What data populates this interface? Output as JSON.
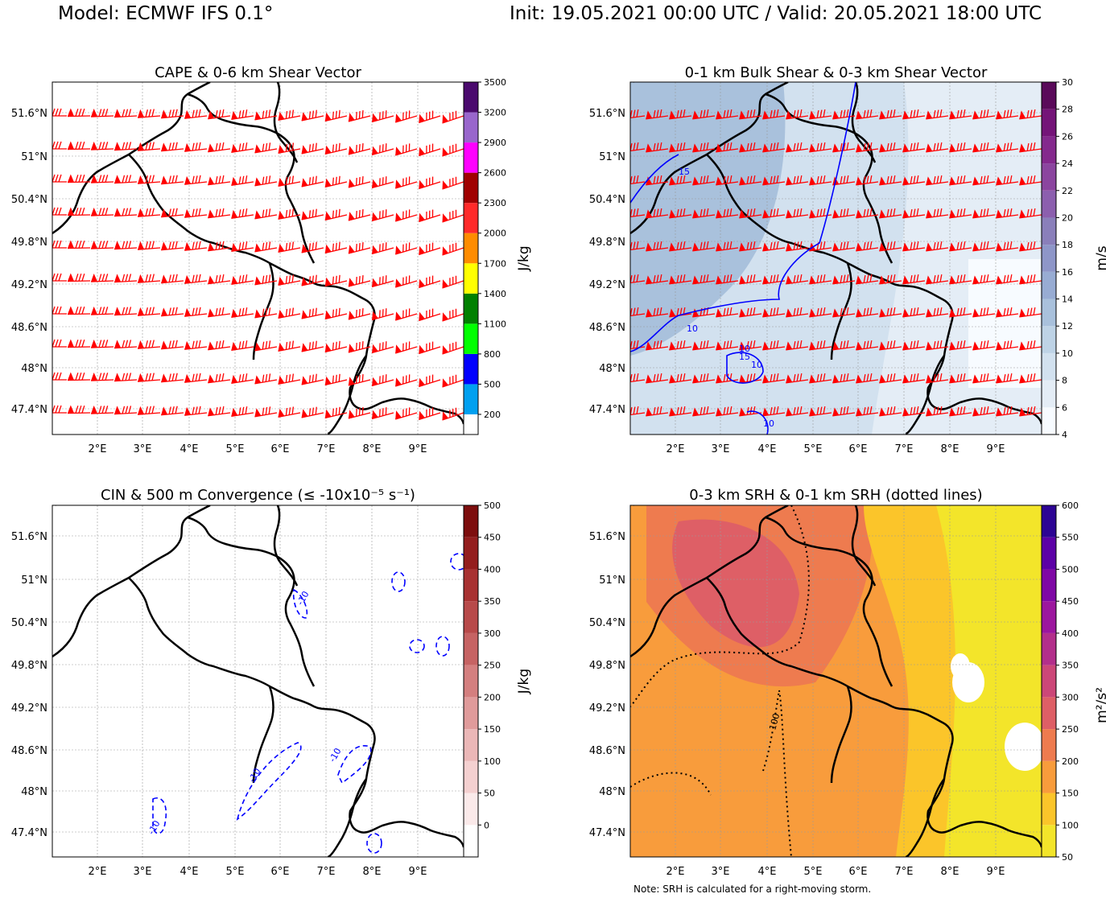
{
  "header": {
    "model": "Model: ECMWF IFS 0.1°",
    "init_valid": "Init: 19.05.2021 00:00 UTC / Valid: 20.05.2021 18:00 UTC"
  },
  "note": "Note: SRH is calculated for a right-moving storm.",
  "colors": {
    "barb": "#ff0000",
    "contour": "#0000ff",
    "border": "#000000"
  },
  "chart_data": [
    {
      "type": "heatmap",
      "title": "CAPE & 0-6 km Shear Vector",
      "lat_ticks": [
        "51.6°N",
        "51°N",
        "50.4°N",
        "49.8°N",
        "49.2°N",
        "48.6°N",
        "48°N",
        "47.4°N"
      ],
      "lon_ticks": [
        "2°E",
        "3°E",
        "4°E",
        "5°E",
        "6°E",
        "7°E",
        "8°E",
        "9°E"
      ],
      "colorbar": {
        "label": "J/kg",
        "ticks": [
          "200",
          "500",
          "800",
          "1100",
          "1400",
          "1700",
          "2000",
          "2300",
          "2600",
          "2900",
          "3200",
          "3500"
        ],
        "levels": [
          200,
          500,
          800,
          1100,
          1400,
          1700,
          2000,
          2300,
          2600,
          2900,
          3200,
          3500
        ],
        "colors": [
          "#00a0f0",
          "#0000ff",
          "#00ff00",
          "#008000",
          "#ffff00",
          "#ff8c00",
          "#ff2a2a",
          "#a00000",
          "#ff00ff",
          "#9966cc",
          "#4b0a6e"
        ],
        "vmin": 0,
        "vmax": 3500
      },
      "overlay": "0-6 km shear wind barbs (red)"
    },
    {
      "type": "heatmap",
      "title": "0-1 km Bulk Shear & 0-3 km Shear Vector",
      "lat_ticks": [
        "51.6°N",
        "51°N",
        "50.4°N",
        "49.8°N",
        "49.2°N",
        "48.6°N",
        "48°N",
        "47.4°N"
      ],
      "lon_ticks": [
        "2°E",
        "3°E",
        "4°E",
        "5°E",
        "6°E",
        "7°E",
        "8°E",
        "9°E"
      ],
      "colorbar": {
        "label": "m/s",
        "ticks": [
          "4",
          "6",
          "8",
          "10",
          "12",
          "14",
          "16",
          "18",
          "20",
          "22",
          "24",
          "26",
          "28",
          "30"
        ],
        "levels": [
          4,
          6,
          8,
          10,
          12,
          14,
          16,
          18,
          20,
          22,
          24,
          26,
          28,
          30
        ],
        "colors": [
          "#f7fbff",
          "#e4edf6",
          "#d2e1ef",
          "#bed3e6",
          "#a9c1dc",
          "#98acd3",
          "#8e96c8",
          "#8a7fba",
          "#8c5fae",
          "#8b459f",
          "#84298d",
          "#741478",
          "#5a0a5a"
        ],
        "vmin": 4,
        "vmax": 30
      },
      "contour_labels": [
        "15",
        "15",
        "10",
        "10",
        "10",
        "10"
      ],
      "overlay": "0-3 km shear wind barbs (red)"
    },
    {
      "type": "heatmap",
      "title": "CIN & 500 m Convergence (≤ -10x10⁻⁵ s⁻¹)",
      "lat_ticks": [
        "51.6°N",
        "51°N",
        "50.4°N",
        "49.8°N",
        "49.2°N",
        "48.6°N",
        "48°N",
        "47.4°N"
      ],
      "lon_ticks": [
        "2°E",
        "3°E",
        "4°E",
        "5°E",
        "6°E",
        "7°E",
        "8°E",
        "9°E"
      ],
      "colorbar": {
        "label": "J/kg",
        "ticks": [
          "0",
          "50",
          "100",
          "150",
          "200",
          "250",
          "300",
          "350",
          "400",
          "450",
          "500"
        ],
        "levels": [
          0,
          50,
          100,
          150,
          200,
          250,
          300,
          350,
          400,
          450,
          500
        ],
        "colors": [
          "#fbeaea",
          "#f4d0d0",
          "#ebb7b7",
          "#e09b9b",
          "#d47f7f",
          "#c66363",
          "#b84a4a",
          "#a83232",
          "#941e1e",
          "#7d0e0e",
          "#640000"
        ],
        "vmin": -50,
        "vmax": 500
      },
      "contour_labels": [
        "-10",
        "-10",
        "-10",
        "-10"
      ]
    },
    {
      "type": "heatmap",
      "title": "0-3 km SRH & 0-1 km SRH (dotted lines)",
      "lat_ticks": [
        "51.6°N",
        "51°N",
        "50.4°N",
        "49.8°N",
        "49.2°N",
        "48.6°N",
        "48°N",
        "47.4°N"
      ],
      "lon_ticks": [
        "2°E",
        "3°E",
        "4°E",
        "5°E",
        "6°E",
        "7°E",
        "8°E",
        "9°E"
      ],
      "colorbar": {
        "label": "m²/s²",
        "ticks": [
          "50",
          "100",
          "150",
          "200",
          "250",
          "300",
          "350",
          "400",
          "450",
          "500",
          "550",
          "600"
        ],
        "levels": [
          50,
          100,
          150,
          200,
          250,
          300,
          350,
          400,
          450,
          500,
          550,
          600
        ],
        "colors": [
          "#f3e52a",
          "#fbc52a",
          "#f89c3c",
          "#ee7b4f",
          "#de5f66",
          "#cc4778",
          "#b32f8b",
          "#9c179e",
          "#7f08a5",
          "#5c01a6",
          "#2d0594"
        ],
        "vmin": 50,
        "vmax": 600
      },
      "contour_labels": [
        "100"
      ]
    }
  ]
}
